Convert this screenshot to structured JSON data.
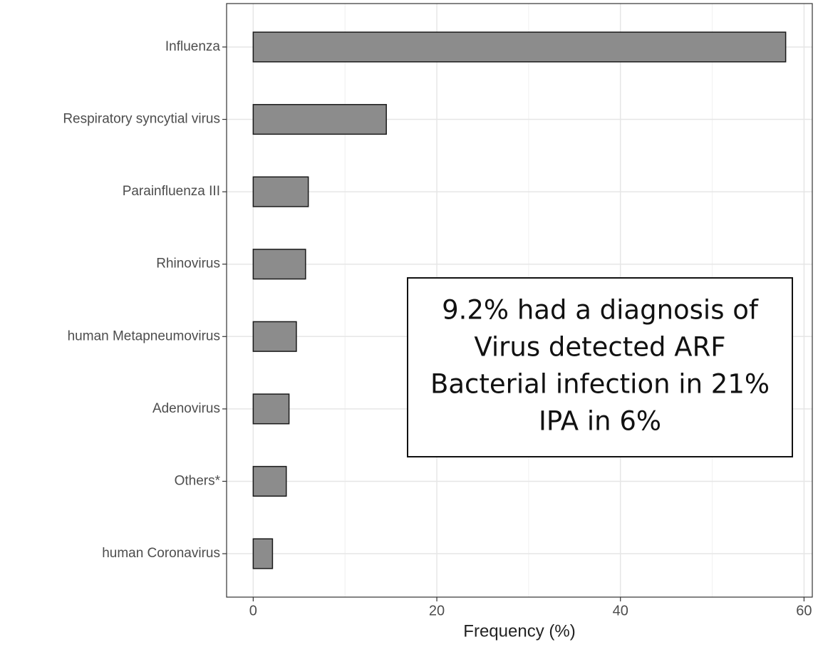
{
  "chart_data": {
    "type": "bar",
    "orientation": "horizontal",
    "categories": [
      "Influenza",
      "Respiratory syncytial virus",
      "Parainfluenza III",
      "Rhinovirus",
      "human Metapneumovirus",
      "Adenovirus",
      "Others*",
      "human Coronavirus"
    ],
    "values": [
      58,
      14.5,
      6,
      5.7,
      4.7,
      3.9,
      3.6,
      2.1
    ],
    "color": "#8c8c8c",
    "x_label": "Frequency (%)",
    "xlim": [
      -2.9,
      60.9
    ],
    "xticks": [
      0,
      20,
      40,
      60
    ],
    "minor_xticks": [
      10,
      30,
      50
    ],
    "grid": true,
    "annotation": [
      "9.2% had a diagnosis of",
      "Virus detected ARF",
      "Bacterial infection in 21%",
      "IPA in 6%"
    ]
  }
}
